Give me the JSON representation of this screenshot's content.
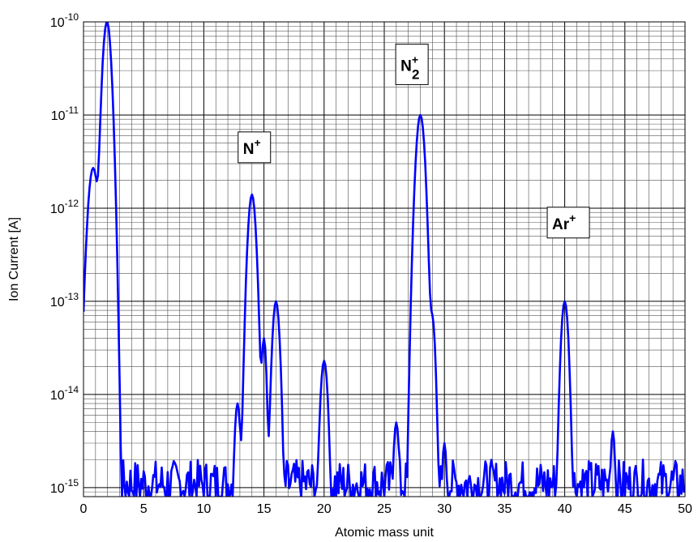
{
  "chart_data": {
    "type": "line",
    "title": "",
    "xlabel": "Atomic mass unit",
    "ylabel": "Ion Current [A]",
    "xlim": [
      0,
      50
    ],
    "ylim": [
      8e-16,
      1e-10
    ],
    "yscale": "log",
    "grid": true,
    "x_ticks": [
      "0",
      "5",
      "10",
      "15",
      "20",
      "25",
      "30",
      "35",
      "40",
      "45",
      "50"
    ],
    "y_ticks": [
      {
        "base": "10",
        "exp": "-15"
      },
      {
        "base": "10",
        "exp": "-14"
      },
      {
        "base": "10",
        "exp": "-13"
      },
      {
        "base": "10",
        "exp": "-12"
      },
      {
        "base": "10",
        "exp": "-11"
      },
      {
        "base": "10",
        "exp": "-10"
      }
    ],
    "line_color": "#0000ff",
    "annotations": [
      {
        "base": "N",
        "sup": "+",
        "sub": "",
        "x": 14.2,
        "y": 4.5e-12
      },
      {
        "base": "N",
        "sup": "+",
        "sub": "2",
        "x": 27.3,
        "y": 3.5e-11
      },
      {
        "base": "Ar",
        "sup": "+",
        "sub": "",
        "x": 40.3,
        "y": 7e-13
      }
    ],
    "series": [
      {
        "peaks": [
          {
            "center": 0.8,
            "height": 2.7e-12,
            "width": 0.3
          },
          {
            "center": 1.95,
            "height": 1e-10,
            "width": 0.25
          },
          {
            "center": 12.8,
            "height": 8e-15,
            "width": 0.18
          },
          {
            "center": 14.0,
            "height": 1.4e-12,
            "width": 0.24
          },
          {
            "center": 15.0,
            "height": 4e-14,
            "width": 0.15
          },
          {
            "center": 16.0,
            "height": 1e-13,
            "width": 0.22
          },
          {
            "center": 20.0,
            "height": 2.3e-14,
            "width": 0.22
          },
          {
            "center": 26.0,
            "height": 5e-15,
            "width": 0.18
          },
          {
            "center": 28.0,
            "height": 1e-11,
            "width": 0.26
          },
          {
            "center": 29.0,
            "height": 6.5e-14,
            "width": 0.18
          },
          {
            "center": 30.0,
            "height": 3e-15,
            "width": 0.15
          },
          {
            "center": 40.0,
            "height": 1e-13,
            "width": 0.22
          },
          {
            "center": 44.0,
            "height": 4e-15,
            "width": 0.15
          }
        ],
        "baseline_range": [
          6e-16,
          2e-15
        ]
      }
    ]
  }
}
